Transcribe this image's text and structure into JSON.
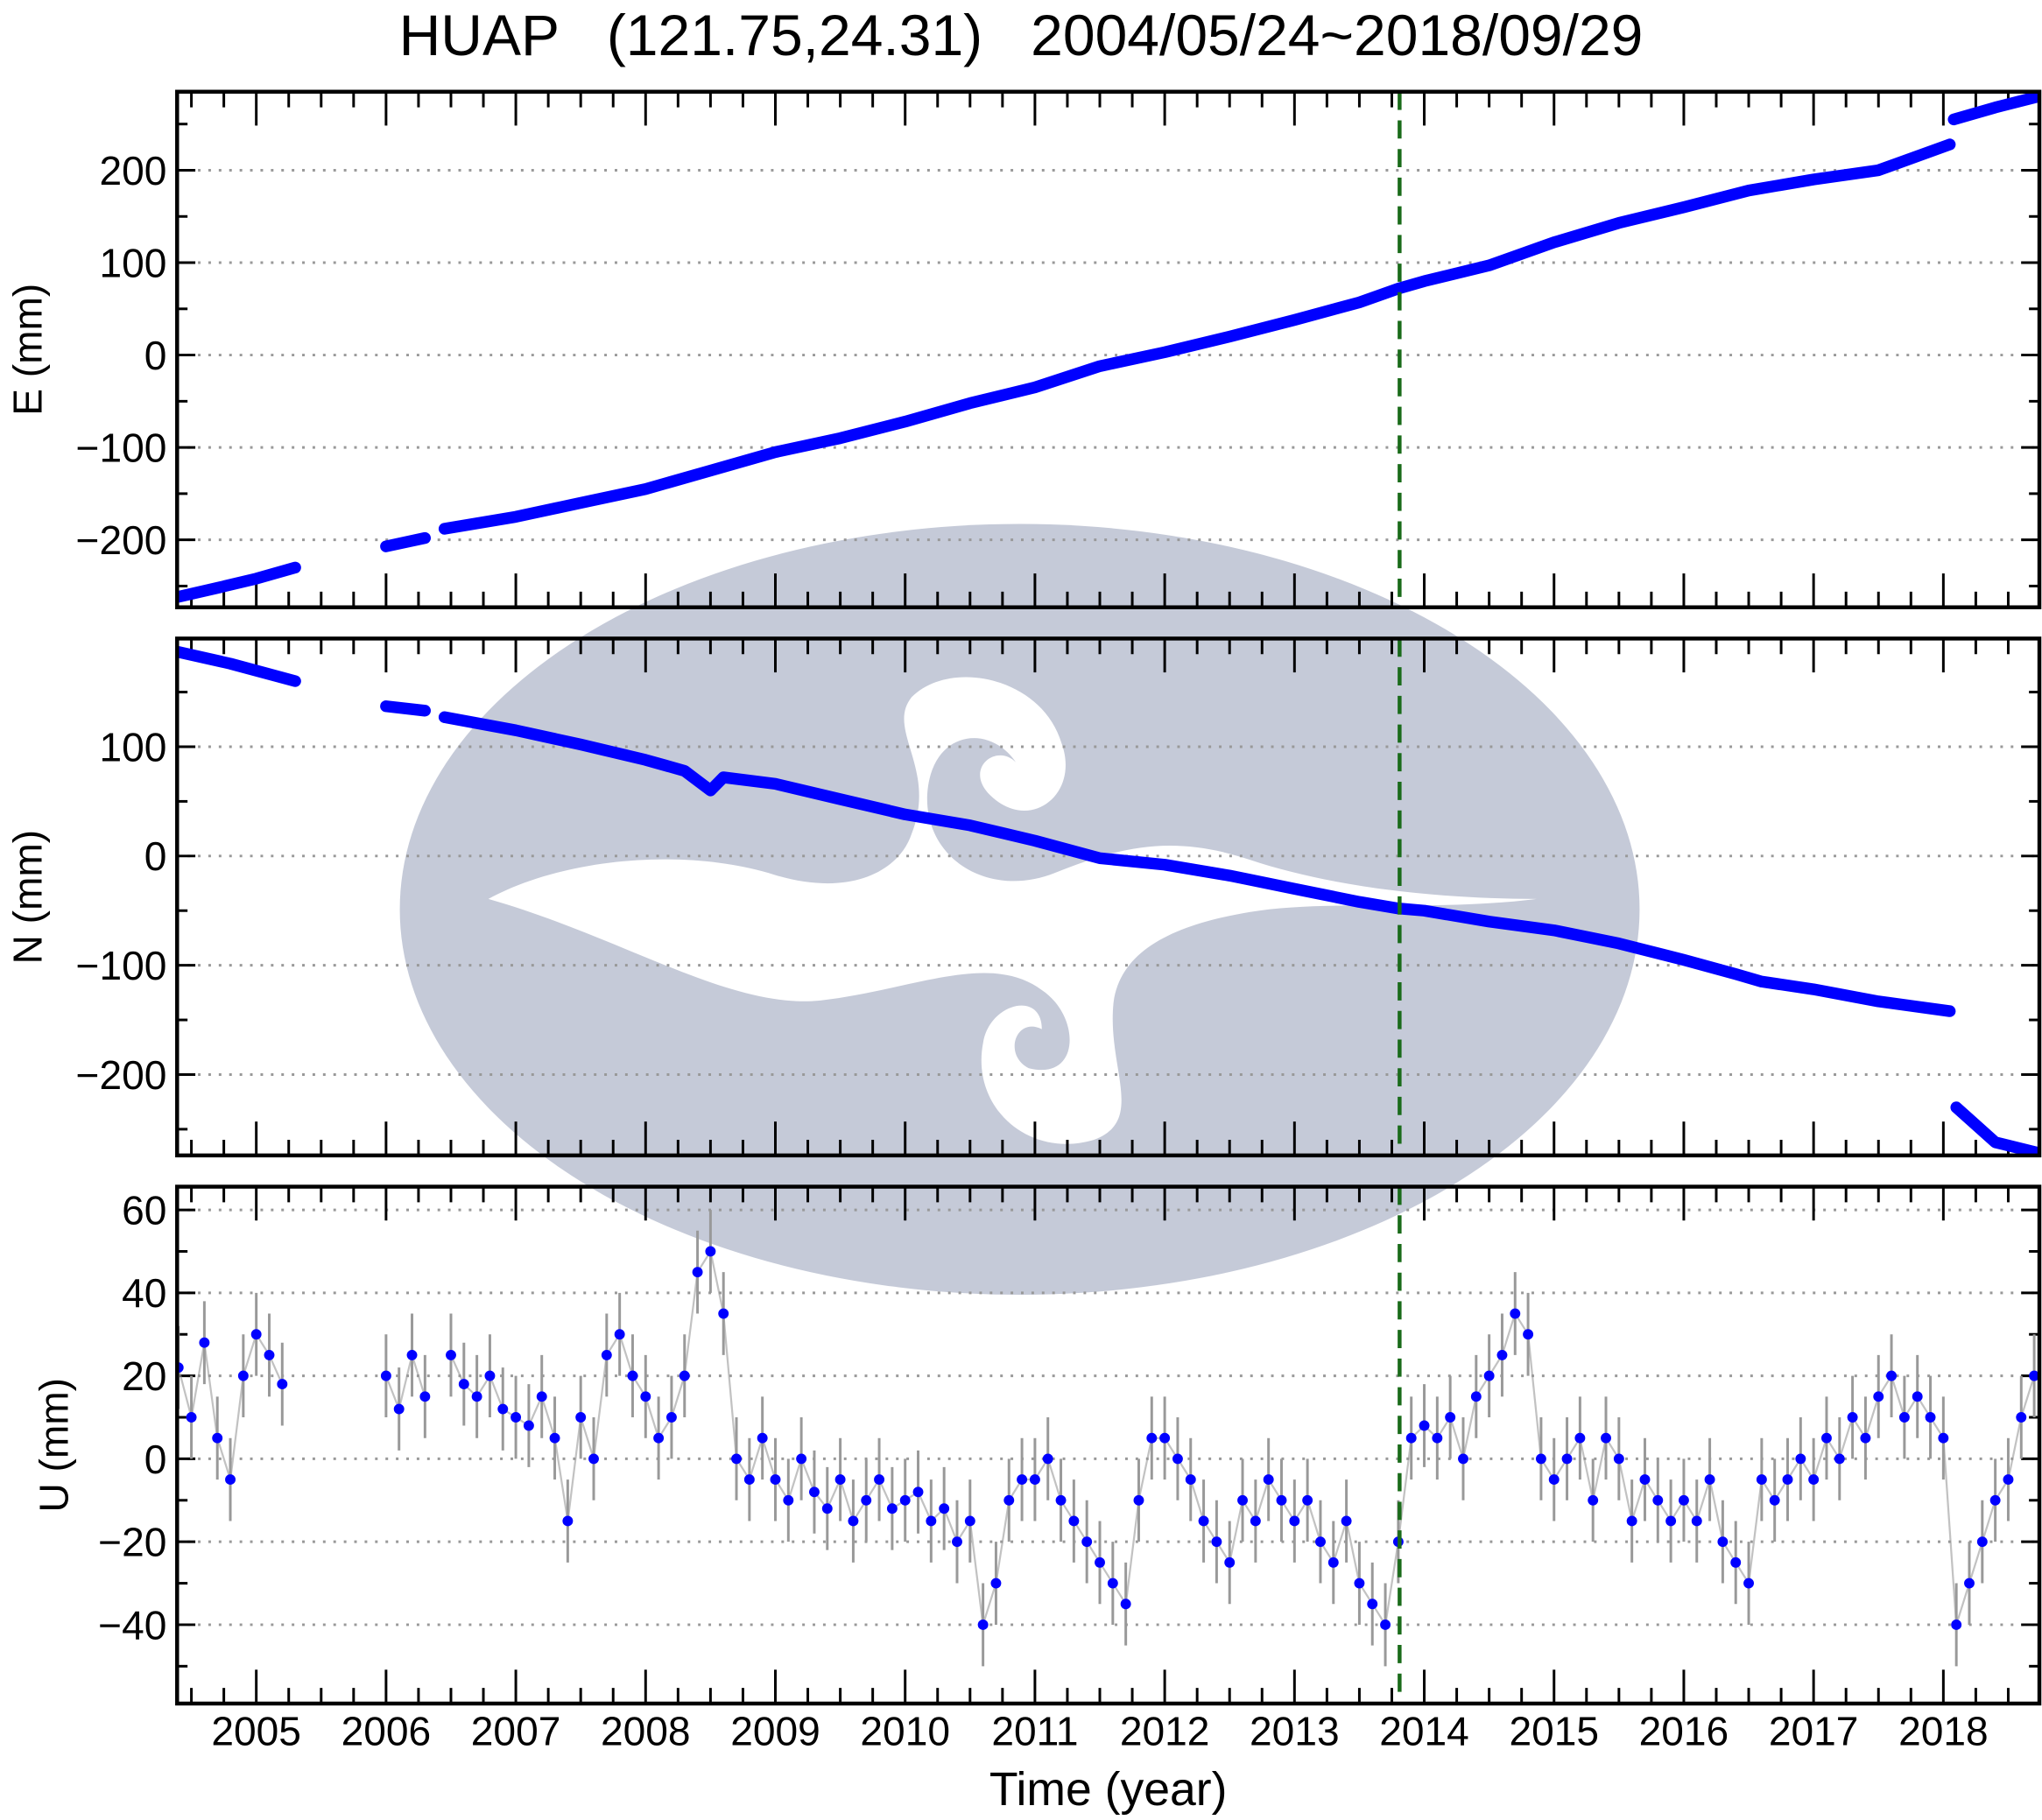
{
  "title": {
    "station": "HUAP",
    "coords": "(121.75,24.31)",
    "date_range": "2004/05/24~2018/09/29"
  },
  "colors": {
    "points": "#0000ff",
    "errorbars": "#999999",
    "event_line": "#1a6b1a",
    "grid": "#999999",
    "watermark": "#c5cad8"
  },
  "chart_data": [
    {
      "type": "scatter",
      "component": "E",
      "ylabel": "E (mm)",
      "ylim": [
        -273,
        285
      ],
      "yticks": [
        -200,
        -100,
        0,
        100,
        200
      ],
      "yminor": 50,
      "grid": true,
      "segments": [
        [
          [
            2004.39,
            -262
          ],
          [
            2004.7,
            -252
          ],
          [
            2005.0,
            -242
          ],
          [
            2005.3,
            -230
          ]
        ],
        [
          [
            2006.0,
            -207
          ],
          [
            2006.3,
            -198
          ]
        ],
        [
          [
            2006.45,
            -188
          ],
          [
            2007.0,
            -175
          ],
          [
            2007.5,
            -160
          ],
          [
            2008.0,
            -145
          ],
          [
            2008.5,
            -125
          ],
          [
            2009.0,
            -105
          ],
          [
            2009.5,
            -90
          ],
          [
            2010.0,
            -72
          ],
          [
            2010.5,
            -52
          ],
          [
            2011.0,
            -35
          ],
          [
            2011.5,
            -12
          ],
          [
            2012.0,
            3
          ],
          [
            2012.5,
            20
          ],
          [
            2013.0,
            38
          ],
          [
            2013.5,
            57
          ],
          [
            2013.8,
            72
          ],
          [
            2014.0,
            80
          ],
          [
            2014.5,
            97
          ],
          [
            2015.0,
            122
          ],
          [
            2015.5,
            143
          ],
          [
            2016.0,
            160
          ],
          [
            2016.5,
            178
          ],
          [
            2017.0,
            190
          ],
          [
            2017.5,
            200
          ],
          [
            2018.05,
            228
          ]
        ],
        [
          [
            2018.08,
            255
          ],
          [
            2018.4,
            268
          ],
          [
            2018.74,
            280
          ]
        ]
      ]
    },
    {
      "type": "scatter",
      "component": "N",
      "ylabel": "N (mm)",
      "ylim": [
        -274,
        199
      ],
      "yticks": [
        -200,
        -100,
        0,
        100
      ],
      "yminor": 50,
      "grid": true,
      "segments": [
        [
          [
            2004.39,
            187
          ],
          [
            2004.8,
            176
          ],
          [
            2005.3,
            160
          ]
        ],
        [
          [
            2006.0,
            137
          ],
          [
            2006.3,
            133
          ]
        ],
        [
          [
            2006.45,
            127
          ],
          [
            2007.0,
            115
          ],
          [
            2007.5,
            102
          ],
          [
            2008.0,
            88
          ],
          [
            2008.3,
            78
          ],
          [
            2008.5,
            60
          ],
          [
            2008.6,
            72
          ],
          [
            2009.0,
            66
          ],
          [
            2009.5,
            52
          ],
          [
            2010.0,
            38
          ],
          [
            2010.5,
            28
          ],
          [
            2011.0,
            14
          ],
          [
            2011.5,
            -2
          ],
          [
            2012.0,
            -8
          ],
          [
            2012.5,
            -18
          ],
          [
            2013.0,
            -30
          ],
          [
            2013.5,
            -42
          ],
          [
            2013.8,
            -48
          ],
          [
            2014.0,
            -50
          ],
          [
            2014.5,
            -60
          ],
          [
            2015.0,
            -68
          ],
          [
            2015.5,
            -80
          ],
          [
            2016.0,
            -95
          ],
          [
            2016.4,
            -108
          ],
          [
            2016.6,
            -115
          ],
          [
            2017.0,
            -122
          ],
          [
            2017.5,
            -133
          ],
          [
            2018.05,
            -142
          ]
        ],
        [
          [
            2018.1,
            -230
          ],
          [
            2018.4,
            -262
          ],
          [
            2018.74,
            -272
          ]
        ]
      ]
    },
    {
      "type": "scatter",
      "component": "U",
      "ylabel": "U (mm)",
      "ylim": [
        -59,
        65.6
      ],
      "yticks": [
        -40,
        -20,
        0,
        20,
        40,
        60
      ],
      "yminor": 10,
      "grid": true,
      "error_mm": 10,
      "series_sampled": [
        {
          "start": 2004.4,
          "step": 0.1,
          "values": [
            22,
            10,
            28,
            5,
            -5,
            20,
            30,
            25,
            18
          ]
        },
        {
          "start": 2006.0,
          "step": 0.1,
          "values": [
            20,
            12,
            25,
            15
          ]
        },
        {
          "start": 2006.5,
          "step": 0.1,
          "values": [
            25,
            18,
            15,
            20,
            12,
            10,
            8,
            15,
            5,
            -15,
            10,
            0,
            25,
            30,
            20,
            15,
            5,
            10,
            20,
            45,
            50,
            35,
            0,
            -5,
            5,
            -5,
            -10,
            0,
            -8,
            -12,
            -5,
            -15,
            -10,
            -5,
            -12,
            -10,
            -8,
            -15,
            -12,
            -20,
            -15,
            -40,
            -30,
            -10,
            -5,
            -5,
            0,
            -10,
            -15,
            -20,
            -25,
            -30,
            -35,
            -10,
            5,
            5,
            0,
            -5,
            -15,
            -20,
            -25,
            -10,
            -15,
            -5,
            -10,
            -15,
            -10,
            -20,
            -25,
            -15,
            -30,
            -35,
            -40,
            -20,
            5,
            8,
            5,
            10,
            0,
            15,
            20,
            25,
            35,
            30,
            0,
            -5,
            0,
            5,
            -10,
            5,
            0,
            -15,
            -5,
            -10,
            -15,
            -10,
            -15,
            -5,
            -20,
            -25,
            -30,
            -5,
            -10,
            -5,
            0,
            -5,
            5,
            0,
            10,
            5,
            15,
            20,
            10,
            15,
            10,
            5,
            -40,
            -30,
            -20,
            -10,
            -5,
            10,
            20
          ]
        }
      ]
    }
  ],
  "xaxis": {
    "label": "Time (year)",
    "xlim": [
      2004.39,
      2018.74
    ],
    "ticks": [
      "2005",
      "2006",
      "2007",
      "2008",
      "2009",
      "2010",
      "2011",
      "2012",
      "2013",
      "2014",
      "2015",
      "2016",
      "2017",
      "2018"
    ]
  },
  "event_line_year": 2013.81
}
